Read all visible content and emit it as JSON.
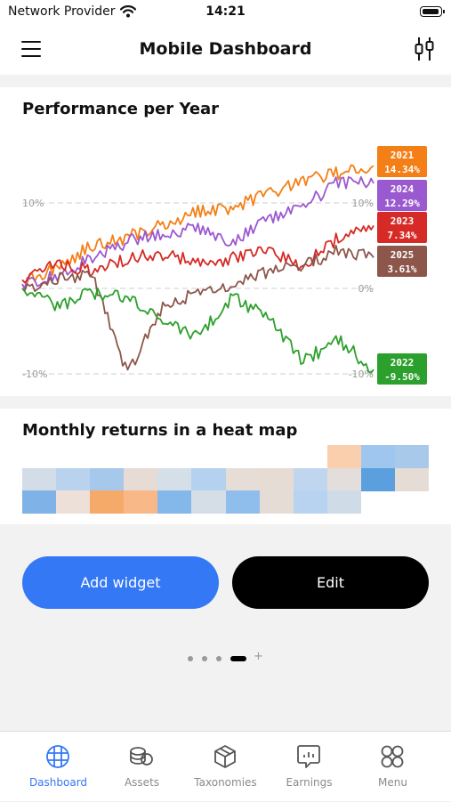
{
  "status": {
    "carrier": "Network Provider",
    "time": "14:21"
  },
  "nav": {
    "title": "Mobile Dashboard",
    "menu_icon": "hamburger-icon",
    "filter_icon": "candlestick-icon"
  },
  "performance": {
    "title": "Performance per Year",
    "chart_data": {
      "type": "line",
      "ylim": [
        -11,
        14
      ],
      "y_unit": "%",
      "grid": "dashed lines at -10%, 0%, 10%",
      "tick_labels_left": [
        "10%",
        "-10%"
      ],
      "tick_labels_right": [
        "10%",
        "0%",
        "-10%"
      ],
      "legend_placement": "right, end-of-line labels",
      "x_samples_note": "values sampled every 10% of the year",
      "series": [
        {
          "name": "2021",
          "label": "14.34%",
          "color": "#f47f16",
          "values": [
            0.5,
            2.5,
            5.0,
            6.0,
            7.5,
            9.0,
            9.5,
            11.0,
            12.5,
            13.5,
            14.34
          ]
        },
        {
          "name": "2024",
          "label": "12.29%",
          "color": "#9b59d0",
          "values": [
            0.5,
            1.5,
            3.5,
            5.5,
            6.5,
            7.0,
            5.5,
            8.0,
            9.5,
            12.5,
            12.29
          ]
        },
        {
          "name": "2023",
          "label": "7.34%",
          "color": "#d62a26",
          "values": [
            1.0,
            3.0,
            2.0,
            3.5,
            4.0,
            3.0,
            3.5,
            4.5,
            2.5,
            6.0,
            7.34
          ]
        },
        {
          "name": "2025",
          "label": "3.61%",
          "color": "#8c564b",
          "values": [
            0.0,
            1.0,
            1.5,
            -10.0,
            -2.0,
            -0.5,
            0.5,
            2.0,
            2.5,
            4.5,
            3.61
          ]
        },
        {
          "name": "2022",
          "label": "-9.50%",
          "color": "#2ca02c",
          "values": [
            0.0,
            -2.0,
            -0.5,
            -1.0,
            -4.0,
            -5.5,
            -1.0,
            -3.5,
            -8.5,
            -6.0,
            -9.5
          ]
        }
      ]
    }
  },
  "heatmap": {
    "title": "Monthly returns in a heat map",
    "chart_data": {
      "type": "heatmap",
      "columns": 12,
      "rows": [
        {
          "start_col": 9,
          "cells": [
            "#f9cfae",
            "#9fc6ee",
            "#a8c9ea"
          ]
        },
        {
          "start_col": 0,
          "cells": [
            "#d2dde8",
            "#b9d3ee",
            "#a6c8ea",
            "#e7dbd5",
            "#d5dfe8",
            "#b5d1f0",
            "#e7ddd7",
            "#e7dcd4",
            "#c0d6ee",
            "#e3dedc",
            "#5c9fdf",
            "#e5dcd5"
          ]
        },
        {
          "start_col": 0,
          "cells": [
            "#7fb2e6",
            "#ece0d8",
            "#f6aa6a",
            "#f9b887",
            "#85b8ea",
            "#d5dde6",
            "#8fbeec",
            "#e4dcd5",
            "#b8d3ef",
            "#d0dbe8"
          ]
        }
      ]
    }
  },
  "actions": {
    "add_widget": "Add widget",
    "edit": "Edit"
  },
  "pager": {
    "pages": 4,
    "active_index": 3,
    "plus": "+"
  },
  "tabs": [
    {
      "label": "Dashboard",
      "icon": "grid-globe-icon",
      "active": true
    },
    {
      "label": "Assets",
      "icon": "coins-icon",
      "active": false
    },
    {
      "label": "Taxonomies",
      "icon": "cube-icon",
      "active": false
    },
    {
      "label": "Earnings",
      "icon": "earnings-chat-icon",
      "active": false
    },
    {
      "label": "Menu",
      "icon": "four-circles-icon",
      "active": false
    }
  ],
  "colors": {
    "accent": "#3478f6",
    "dark_button": "#000000",
    "inactive_tab": "#8a8a8a"
  }
}
